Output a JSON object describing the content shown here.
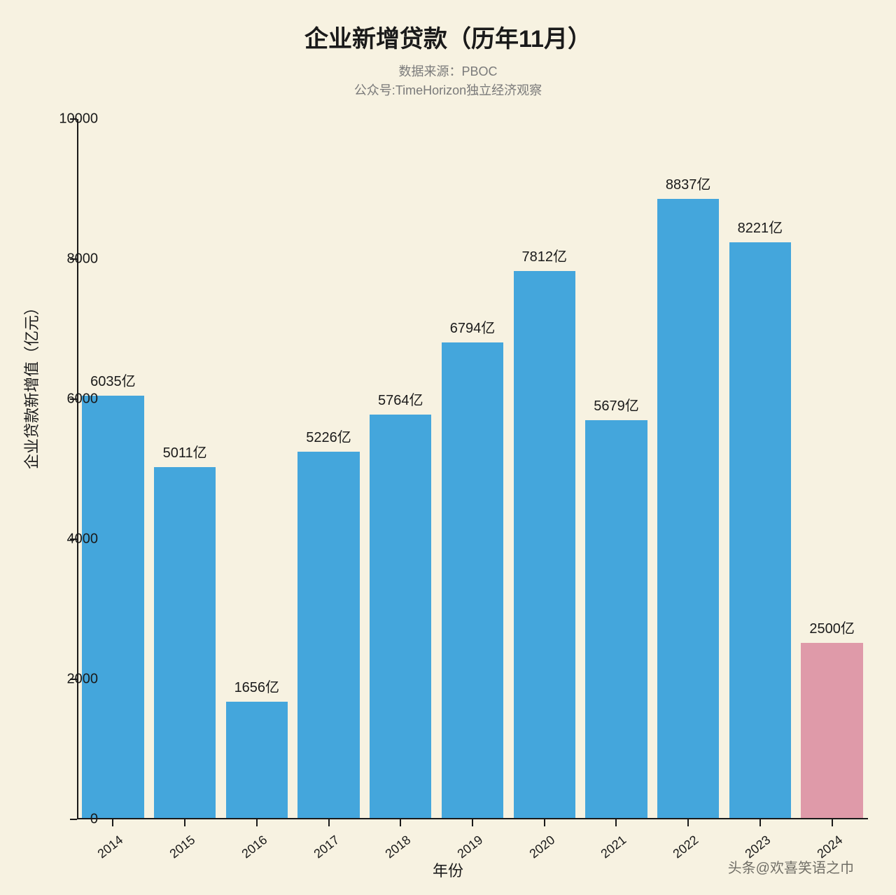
{
  "chart": {
    "type": "bar",
    "title": "企业新增贷款（历年11月）",
    "subtitle_line1": "数据来源：PBOC",
    "subtitle_line2": "公众号:TimeHorizon独立经济观察",
    "y_axis_title": "企业贷款新增值（亿元）",
    "x_axis_title": "年份",
    "background_color": "#f7f2e1",
    "axis_color": "#1a1a1a",
    "title_fontsize": 34,
    "subtitle_fontsize": 18,
    "axis_label_fontsize": 20,
    "bar_label_fontsize": 20,
    "axis_title_fontsize": 22,
    "y_axis": {
      "min": 0,
      "max": 10000,
      "tick_step": 2000,
      "ticks": [
        0,
        2000,
        4000,
        6000,
        8000,
        10000
      ]
    },
    "categories": [
      "2014",
      "2015",
      "2016",
      "2017",
      "2018",
      "2019",
      "2020",
      "2021",
      "2022",
      "2023",
      "2024"
    ],
    "values": [
      6035,
      5011,
      1656,
      5226,
      5764,
      6794,
      7812,
      5679,
      8837,
      8221,
      2500
    ],
    "value_labels": [
      "6035亿",
      "5011亿",
      "1656亿",
      "5226亿",
      "5764亿",
      "6794亿",
      "7812亿",
      "5679亿",
      "8837亿",
      "8221亿",
      "2500亿"
    ],
    "bar_colors": [
      "#44a6dc",
      "#44a6dc",
      "#44a6dc",
      "#44a6dc",
      "#44a6dc",
      "#44a6dc",
      "#44a6dc",
      "#44a6dc",
      "#44a6dc",
      "#44a6dc",
      "#df9aa9"
    ],
    "bar_width_ratio": 0.86,
    "x_tick_rotation_deg": -38
  },
  "watermark": "头条@欢喜笑语之巾"
}
